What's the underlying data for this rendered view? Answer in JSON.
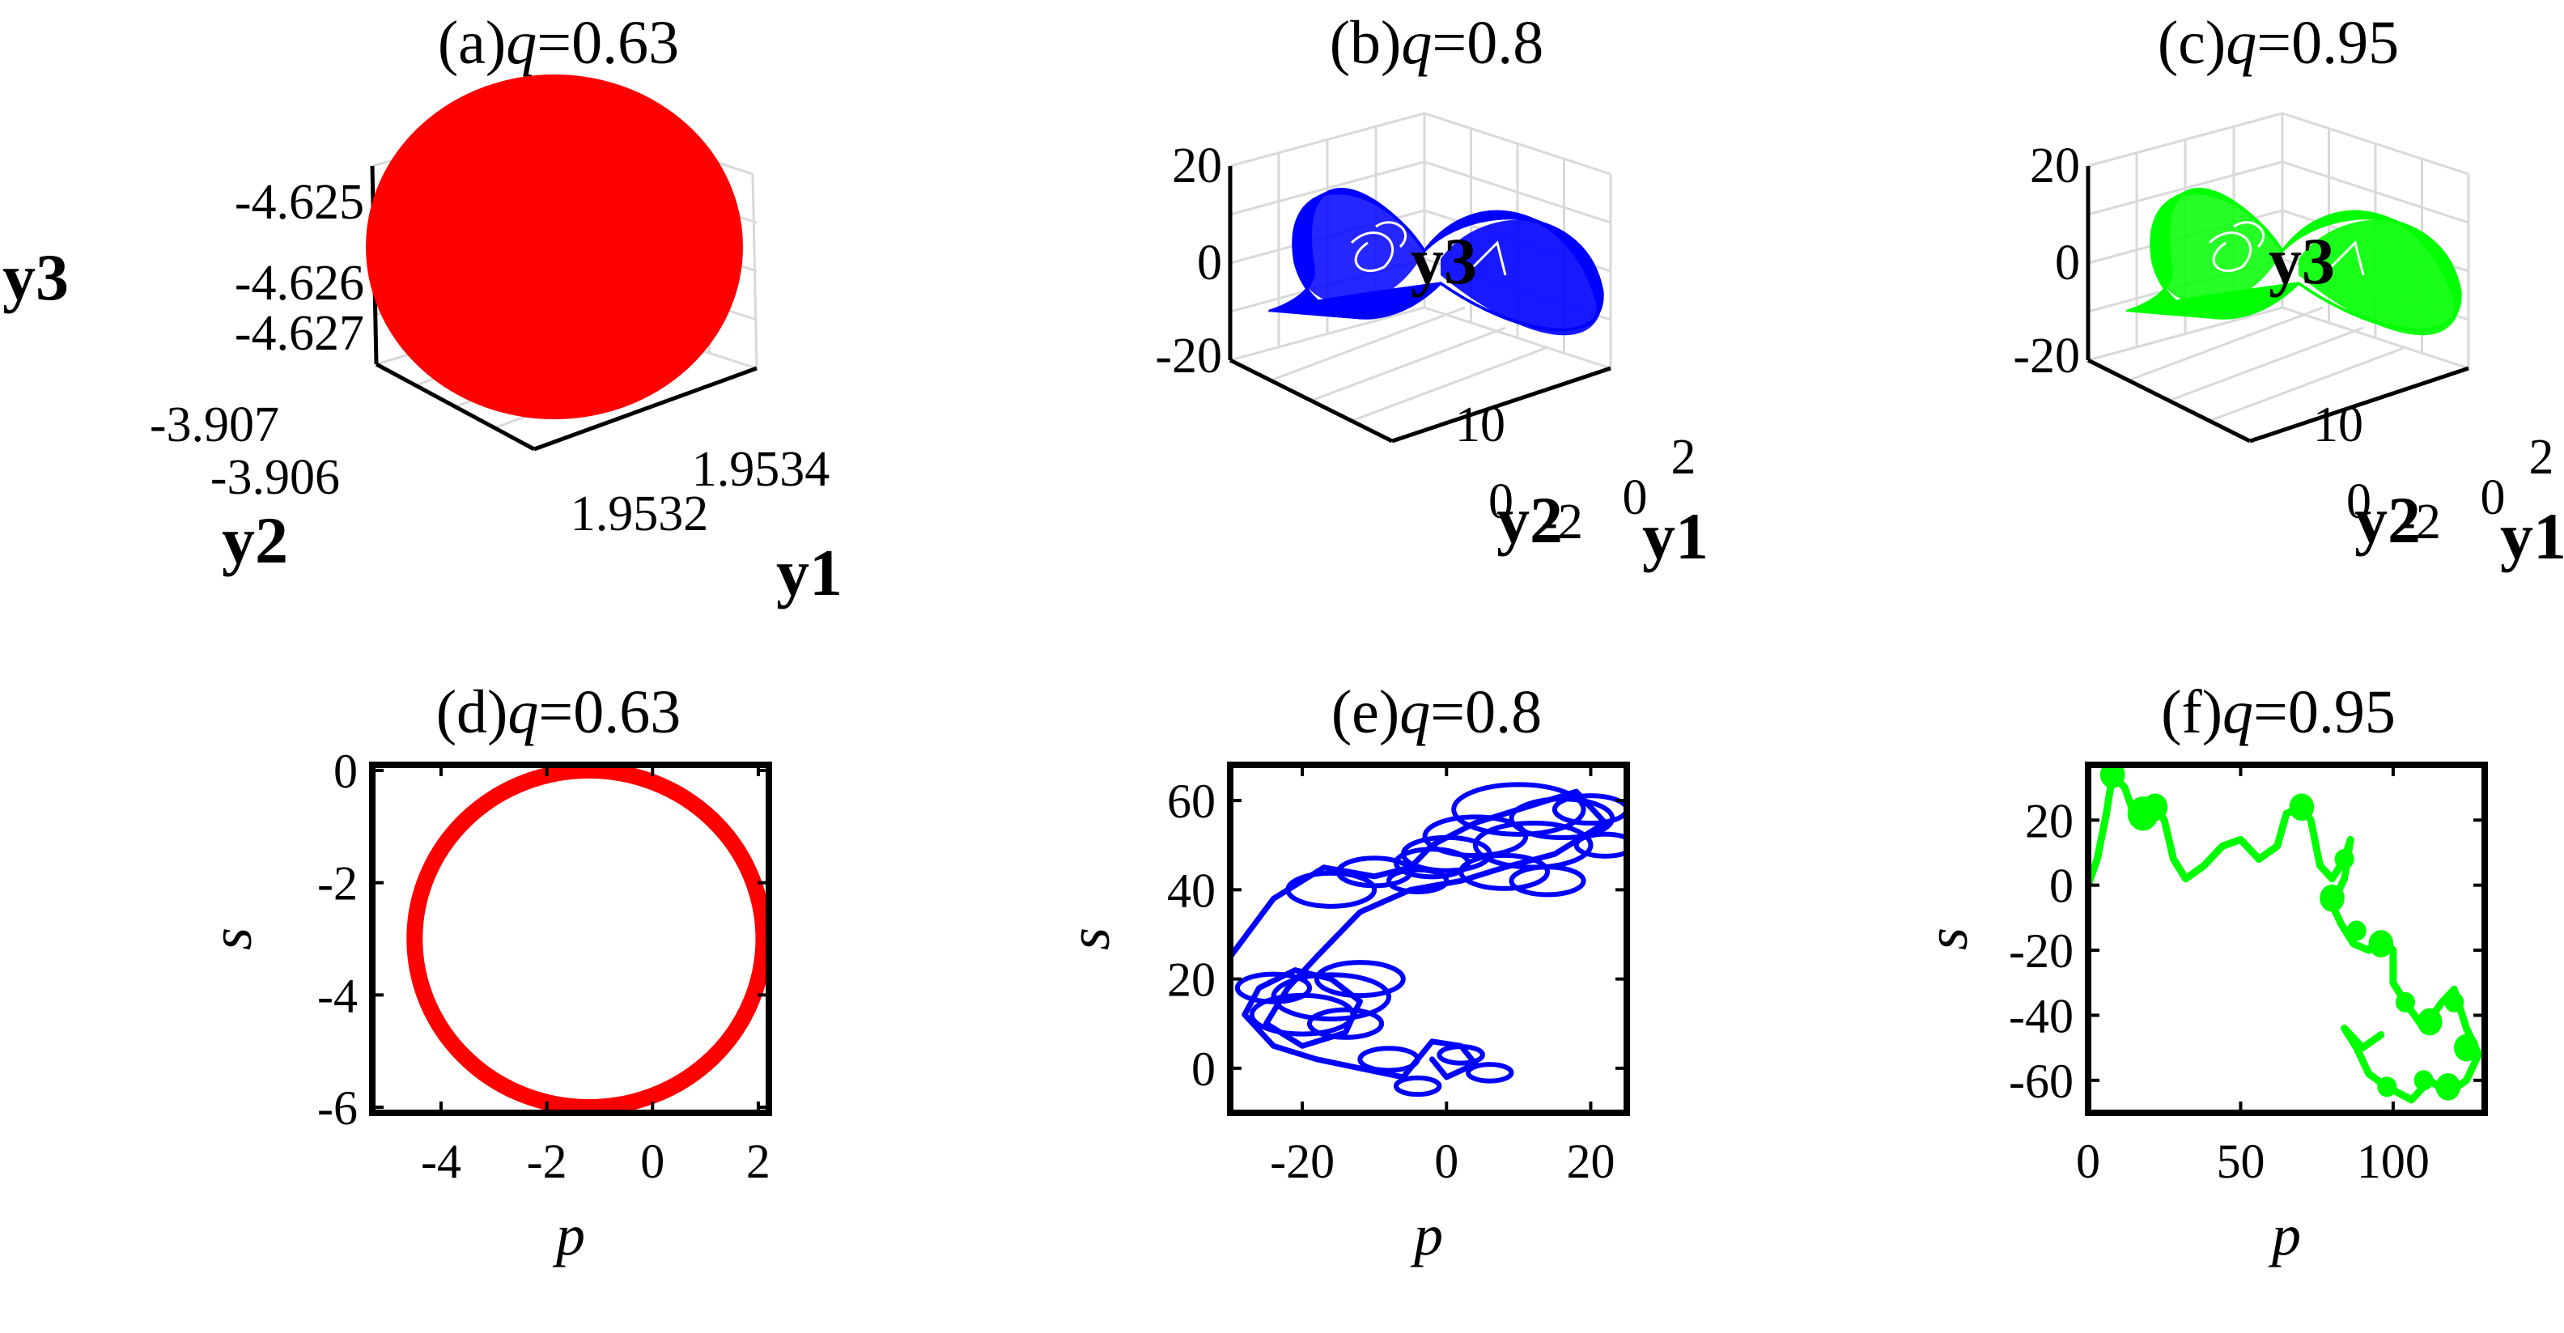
{
  "colors": {
    "a": "#ff0000",
    "b": "#0000ff",
    "c": "#00ff00",
    "d": "#ff0000",
    "e": "#0000ff",
    "f": "#00ff00",
    "axis": "#000000",
    "grid": "#d9d9d9"
  },
  "chart_data": [
    {
      "id": "a",
      "type": "line3d",
      "title": {
        "prefix": "(a)",
        "var": "q",
        "value": "=0.63"
      },
      "xlabel": "y1",
      "ylabel": "y2",
      "zlabel": "y3",
      "xticks": [
        "1.9532",
        "1.9534"
      ],
      "yticks": [
        "-3.907",
        "-3.906"
      ],
      "zticks": [
        "-4.627",
        "-4.626",
        "-4.625"
      ],
      "xlim": [
        1.9531,
        1.9535
      ],
      "ylim": [
        -3.9075,
        -3.9055
      ],
      "zlim": [
        -4.6275,
        -4.6245
      ],
      "attractor": "filled elliptical orbit",
      "grid": true
    },
    {
      "id": "b",
      "type": "line3d",
      "title": {
        "prefix": "(b)",
        "var": "q",
        "value": "=0.8"
      },
      "xlabel": "y1",
      "ylabel": "y2",
      "zlabel": "y3",
      "xticks": [
        "-2",
        "0",
        "2"
      ],
      "yticks": [
        "0",
        "10"
      ],
      "zticks": [
        "-20",
        "0",
        "20"
      ],
      "xlim": [
        -3,
        3
      ],
      "ylim": [
        -5,
        15
      ],
      "zlim": [
        -22,
        22
      ],
      "attractor": "two-lobe chaotic attractor",
      "grid": true
    },
    {
      "id": "c",
      "type": "line3d",
      "title": {
        "prefix": "(c)",
        "var": "q",
        "value": "=0.95"
      },
      "xlabel": "y1",
      "ylabel": "y2",
      "zlabel": "y3",
      "xticks": [
        "-2",
        "0",
        "2"
      ],
      "yticks": [
        "0",
        "10"
      ],
      "zticks": [
        "-20",
        "0",
        "20"
      ],
      "xlim": [
        -3,
        3
      ],
      "ylim": [
        -5,
        15
      ],
      "zlim": [
        -22,
        22
      ],
      "attractor": "two-lobe chaotic attractor",
      "grid": true
    },
    {
      "id": "d",
      "type": "line",
      "title": {
        "prefix": "(d)",
        "var": "q",
        "value": "=0.63"
      },
      "xlabel": "p",
      "ylabel": "s",
      "xticks": [
        -4,
        -2,
        0,
        2
      ],
      "yticks": [
        0,
        -2,
        -4,
        -6
      ],
      "xlim": [
        -5.3,
        2.2
      ],
      "ylim": [
        -6.1,
        0.1
      ],
      "circle": {
        "cx": -1.2,
        "cy": -3.0,
        "rx": 3.3,
        "ry": 3.0
      }
    },
    {
      "id": "e",
      "type": "line",
      "title": {
        "prefix": "(e)",
        "var": "q",
        "value": "=0.8"
      },
      "xlabel": "p",
      "ylabel": "s",
      "xticks": [
        -20,
        0,
        20
      ],
      "yticks": [
        0,
        20,
        40,
        60
      ],
      "xlim": [
        -30,
        25
      ],
      "ylim": [
        -10,
        68
      ],
      "path": [
        [
          -30,
          25
        ],
        [
          -24,
          38
        ],
        [
          -17,
          45
        ],
        [
          -10,
          43
        ],
        [
          -5,
          45
        ],
        [
          -2,
          50
        ],
        [
          4,
          55
        ],
        [
          10,
          58
        ],
        [
          18,
          62
        ],
        [
          22,
          55
        ],
        [
          15,
          48
        ],
        [
          8,
          45
        ],
        [
          2,
          42
        ],
        [
          -5,
          40
        ],
        [
          -12,
          35
        ],
        [
          -18,
          25
        ],
        [
          -22,
          18
        ],
        [
          -25,
          10
        ],
        [
          -20,
          5
        ],
        [
          -14,
          8
        ],
        [
          -12,
          15
        ],
        [
          -16,
          20
        ],
        [
          -21,
          22
        ],
        [
          -26,
          18
        ],
        [
          -28,
          12
        ],
        [
          -24,
          5
        ],
        [
          -18,
          2
        ],
        [
          -12,
          0
        ],
        [
          -6,
          -2
        ],
        [
          -4,
          2
        ],
        [
          -2,
          6
        ],
        [
          2,
          5
        ],
        [
          4,
          1
        ],
        [
          0,
          -2
        ],
        [
          -2,
          2
        ]
      ],
      "loops": [
        [
          -24,
          18,
          5
        ],
        [
          -16,
          16,
          8
        ],
        [
          -12,
          20,
          6
        ],
        [
          -20,
          12,
          7
        ],
        [
          -14,
          10,
          5
        ],
        [
          -8,
          2,
          4
        ],
        [
          -4,
          -4,
          3
        ],
        [
          2,
          3,
          3
        ],
        [
          6,
          -1,
          3
        ],
        [
          -16,
          40,
          6
        ],
        [
          -10,
          44,
          5
        ],
        [
          -4,
          42,
          4
        ],
        [
          0,
          48,
          6
        ],
        [
          4,
          52,
          7
        ],
        [
          8,
          44,
          6
        ],
        [
          12,
          50,
          8
        ],
        [
          16,
          56,
          7
        ],
        [
          20,
          58,
          5
        ],
        [
          22,
          50,
          4
        ],
        [
          10,
          58,
          9
        ],
        [
          -2,
          46,
          5
        ],
        [
          14,
          42,
          5
        ]
      ]
    },
    {
      "id": "f",
      "type": "line",
      "title": {
        "prefix": "(f)",
        "var": "q",
        "value": "=0.95"
      },
      "xlabel": "p",
      "ylabel": "s",
      "xticks": [
        0,
        50,
        100
      ],
      "yticks": [
        20,
        0,
        -20,
        -40,
        -60
      ],
      "xlim": [
        0,
        130
      ],
      "ylim": [
        -70,
        37
      ],
      "path": [
        [
          0,
          0
        ],
        [
          3,
          8
        ],
        [
          6,
          22
        ],
        [
          8,
          34
        ],
        [
          12,
          30
        ],
        [
          15,
          22
        ],
        [
          18,
          20
        ],
        [
          22,
          24
        ],
        [
          25,
          20
        ],
        [
          28,
          8
        ],
        [
          32,
          2
        ],
        [
          38,
          6
        ],
        [
          44,
          12
        ],
        [
          50,
          14
        ],
        [
          56,
          8
        ],
        [
          62,
          12
        ],
        [
          65,
          22
        ],
        [
          70,
          24
        ],
        [
          73,
          20
        ],
        [
          76,
          6
        ],
        [
          80,
          2
        ],
        [
          84,
          8
        ],
        [
          86,
          14
        ],
        [
          84,
          2
        ],
        [
          80,
          -6
        ],
        [
          83,
          -12
        ],
        [
          87,
          -18
        ],
        [
          92,
          -20
        ],
        [
          96,
          -16
        ],
        [
          100,
          -20
        ],
        [
          100,
          -30
        ],
        [
          104,
          -36
        ],
        [
          110,
          -44
        ],
        [
          116,
          -36
        ],
        [
          120,
          -32
        ],
        [
          124,
          -44
        ],
        [
          128,
          -52
        ],
        [
          124,
          -60
        ],
        [
          118,
          -64
        ],
        [
          112,
          -60
        ],
        [
          106,
          -66
        ],
        [
          98,
          -62
        ],
        [
          92,
          -58
        ],
        [
          88,
          -50
        ],
        [
          84,
          -44
        ],
        [
          90,
          -50
        ],
        [
          96,
          -46
        ]
      ],
      "loops": [
        [
          8,
          34,
          3
        ],
        [
          18,
          22,
          4
        ],
        [
          22,
          24,
          3
        ],
        [
          70,
          24,
          3
        ],
        [
          80,
          -4,
          3
        ],
        [
          84,
          8,
          2
        ],
        [
          88,
          -14,
          2
        ],
        [
          96,
          -18,
          3
        ],
        [
          104,
          -36,
          2
        ],
        [
          112,
          -42,
          3
        ],
        [
          120,
          -36,
          2
        ],
        [
          124,
          -50,
          3
        ],
        [
          118,
          -62,
          3
        ],
        [
          110,
          -60,
          2
        ],
        [
          98,
          -62,
          2
        ]
      ]
    }
  ]
}
